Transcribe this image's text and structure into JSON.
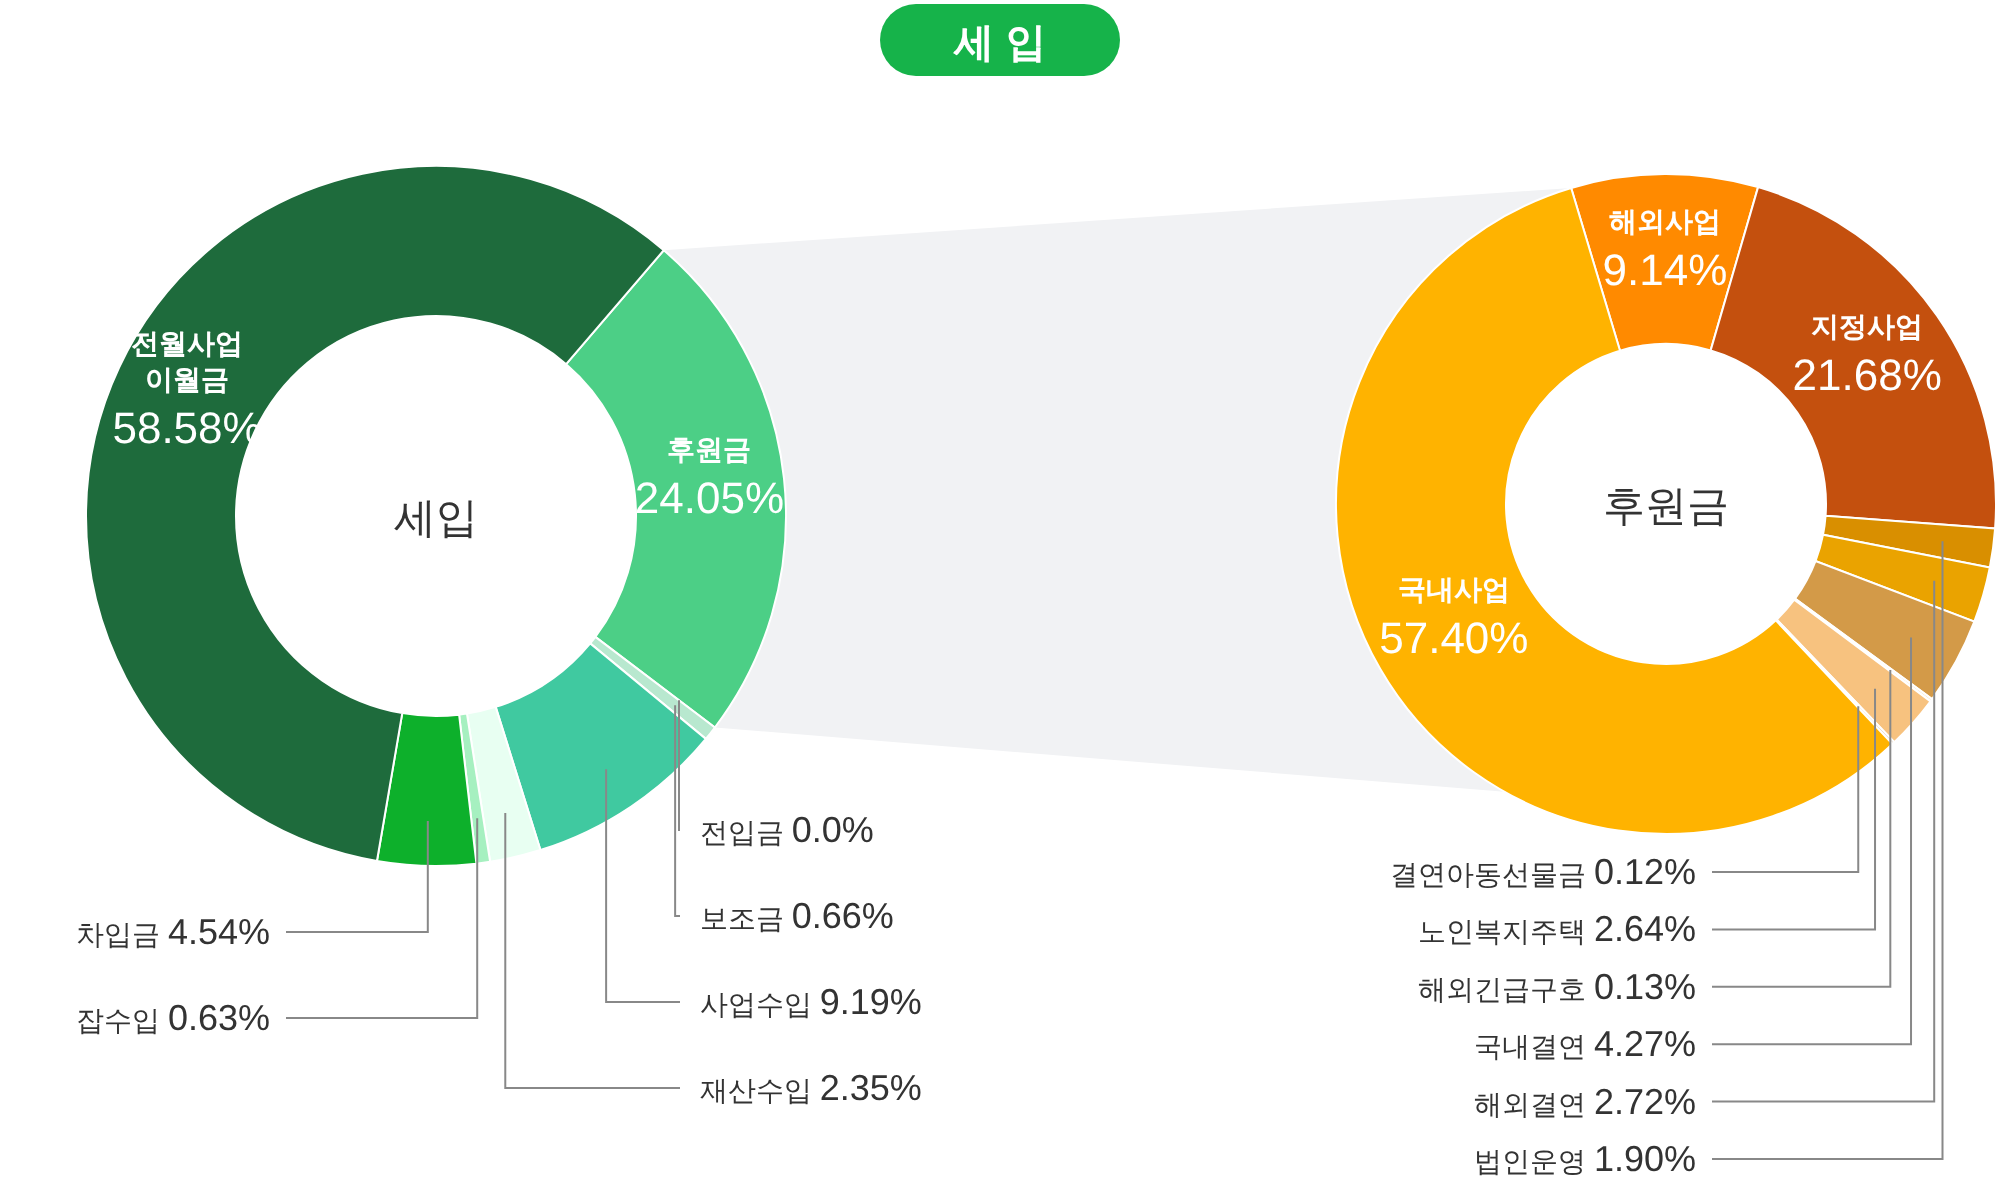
{
  "chart_data": [
    {
      "type": "donut",
      "title": "세 입",
      "annotations": [
        "세입"
      ],
      "categories": [
        "후원금",
        "전입금",
        "보조금",
        "사업수입",
        "재산수입",
        "잡수입",
        "차입금",
        "전월사업 이월금"
      ],
      "values": [
        24.05,
        0.0,
        0.66,
        9.19,
        2.35,
        0.63,
        4.54,
        58.58
      ],
      "value_labels": [
        "24.05%",
        "0.0%",
        "0.66%",
        "9.19%",
        "2.35%",
        "0.63%",
        "4.54%",
        "58.58%"
      ],
      "colors": [
        "#4ccf86",
        "#a8e6c0",
        "#b8e8cf",
        "#40c9a0",
        "#e8fff2",
        "#a6f0c0",
        "#0db02b",
        "#1e6b3c"
      ]
    },
    {
      "type": "donut",
      "annotations": [
        "후원금"
      ],
      "categories": [
        "해외사업",
        "지정사업",
        "법인운영",
        "해외결연",
        "국내결연",
        "해외긴급구호",
        "노인복지주택",
        "결연아동선물금",
        "국내사업"
      ],
      "values": [
        9.14,
        21.68,
        1.9,
        2.72,
        4.27,
        0.13,
        2.64,
        0.12,
        57.4
      ],
      "value_labels": [
        "9.14%",
        "21.68%",
        "1.90%",
        "2.72%",
        "4.27%",
        "0.13%",
        "2.64%",
        "0.12%",
        "57.40%"
      ],
      "colors": [
        "#ff8a00",
        "#c4500e",
        "#d98f00",
        "#eaa300",
        "#d39a48",
        "#f5e0c0",
        "#f7c27f",
        "#c0a080",
        "#ffb300"
      ]
    }
  ]
}
